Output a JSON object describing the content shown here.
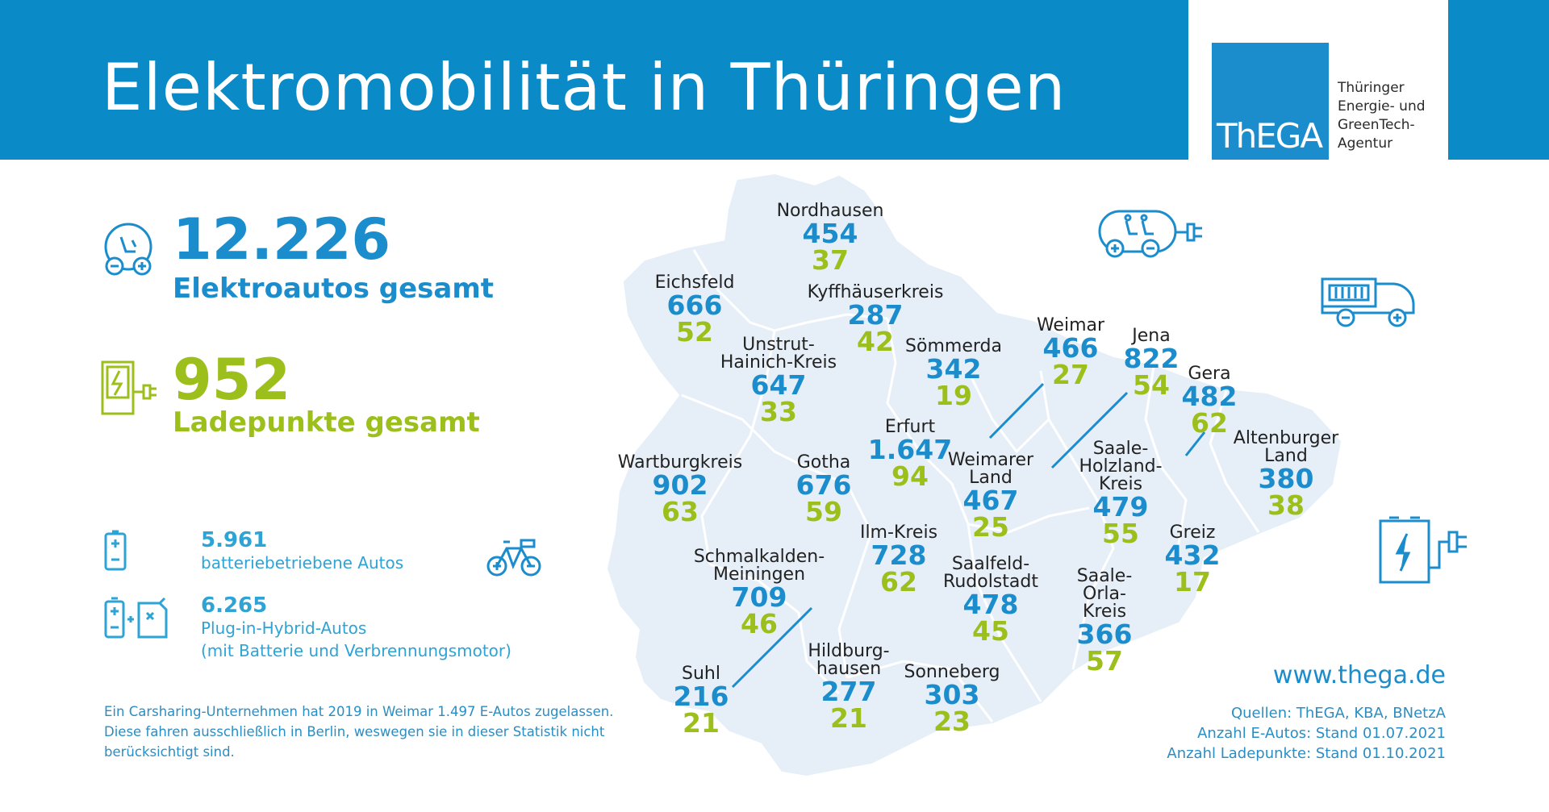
{
  "header": {
    "title": "Elektromobilität in Thüringen",
    "logo_text": "ThEGA",
    "logo_desc": [
      "Thüringer",
      "Energie- und",
      "GreenTech-",
      "Agentur"
    ],
    "banner_color": "#0a8ac6"
  },
  "stats": {
    "cars_total": "12.226",
    "cars_label": "Elektroautos gesamt",
    "charging_total": "952",
    "charging_label": "Ladepunkte gesamt",
    "battery_cars": "5.961",
    "battery_label": "batteriebetriebene Autos",
    "hybrid_cars": "6.265",
    "hybrid_label": "Plug-in-Hybrid-Autos",
    "hybrid_sublabel": "(mit Batterie und Verbrennungsmotor)"
  },
  "note": [
    "Ein Carsharing-Unternehmen hat 2019 in Weimar 1.497 E-Autos zugelassen.",
    "Diese fahren ausschließlich in Berlin, weswegen sie in dieser Statistik nicht",
    "berücksichtigt sind."
  ],
  "footer": {
    "url": "www.thega.de",
    "sources": [
      "Quellen: ThEGA, KBA, BNetzA",
      "Anzahl E-Autos: Stand 01.07.2021",
      "Anzahl Ladepunkte: Stand 01.10.2021"
    ]
  },
  "colors": {
    "ev_blue": "#1b8ccc",
    "charging_green": "#9cbf1c",
    "map_fill": "#e6eff8"
  },
  "icons": [
    "electric-car-icon",
    "charging-station-icon",
    "battery-icon",
    "hybrid-fuel-icon",
    "ebike-icon",
    "electric-car-plug-icon",
    "electric-truck-icon",
    "charging-pump-icon"
  ],
  "regions": [
    {
      "name": "Nordhausen",
      "ev": "454",
      "lp": "37"
    },
    {
      "name": "Eichsfeld",
      "ev": "666",
      "lp": "52"
    },
    {
      "name": "Kyffhäuserkreis",
      "ev": "287",
      "lp": "42"
    },
    {
      "name": "Unstrut-\nHainich-Kreis",
      "ev": "647",
      "lp": "33"
    },
    {
      "name": "Sömmerda",
      "ev": "342",
      "lp": "19"
    },
    {
      "name": "Weimar",
      "ev": "466",
      "lp": "27"
    },
    {
      "name": "Jena",
      "ev": "822",
      "lp": "54"
    },
    {
      "name": "Gera",
      "ev": "482",
      "lp": "62"
    },
    {
      "name": "Erfurt",
      "ev": "1.647",
      "lp": "94"
    },
    {
      "name": "Wartburgkreis",
      "ev": "902",
      "lp": "63"
    },
    {
      "name": "Gotha",
      "ev": "676",
      "lp": "59"
    },
    {
      "name": "Weimarer\nLand",
      "ev": "467",
      "lp": "25"
    },
    {
      "name": "Saale-\nHolzland-\nKreis",
      "ev": "479",
      "lp": "55"
    },
    {
      "name": "Altenburger\nLand",
      "ev": "380",
      "lp": "38"
    },
    {
      "name": "Ilm-Kreis",
      "ev": "728",
      "lp": "62"
    },
    {
      "name": "Greiz",
      "ev": "432",
      "lp": "17"
    },
    {
      "name": "Schmalkalden-\nMeiningen",
      "ev": "709",
      "lp": "46"
    },
    {
      "name": "Saalfeld-\nRudolstadt",
      "ev": "478",
      "lp": "45"
    },
    {
      "name": "Saale-\nOrla-\nKreis",
      "ev": "366",
      "lp": "57"
    },
    {
      "name": "Suhl",
      "ev": "216",
      "lp": "21"
    },
    {
      "name": "Hildburg-\nhausen",
      "ev": "277",
      "lp": "21"
    },
    {
      "name": "Sonneberg",
      "ev": "303",
      "lp": "23"
    }
  ]
}
